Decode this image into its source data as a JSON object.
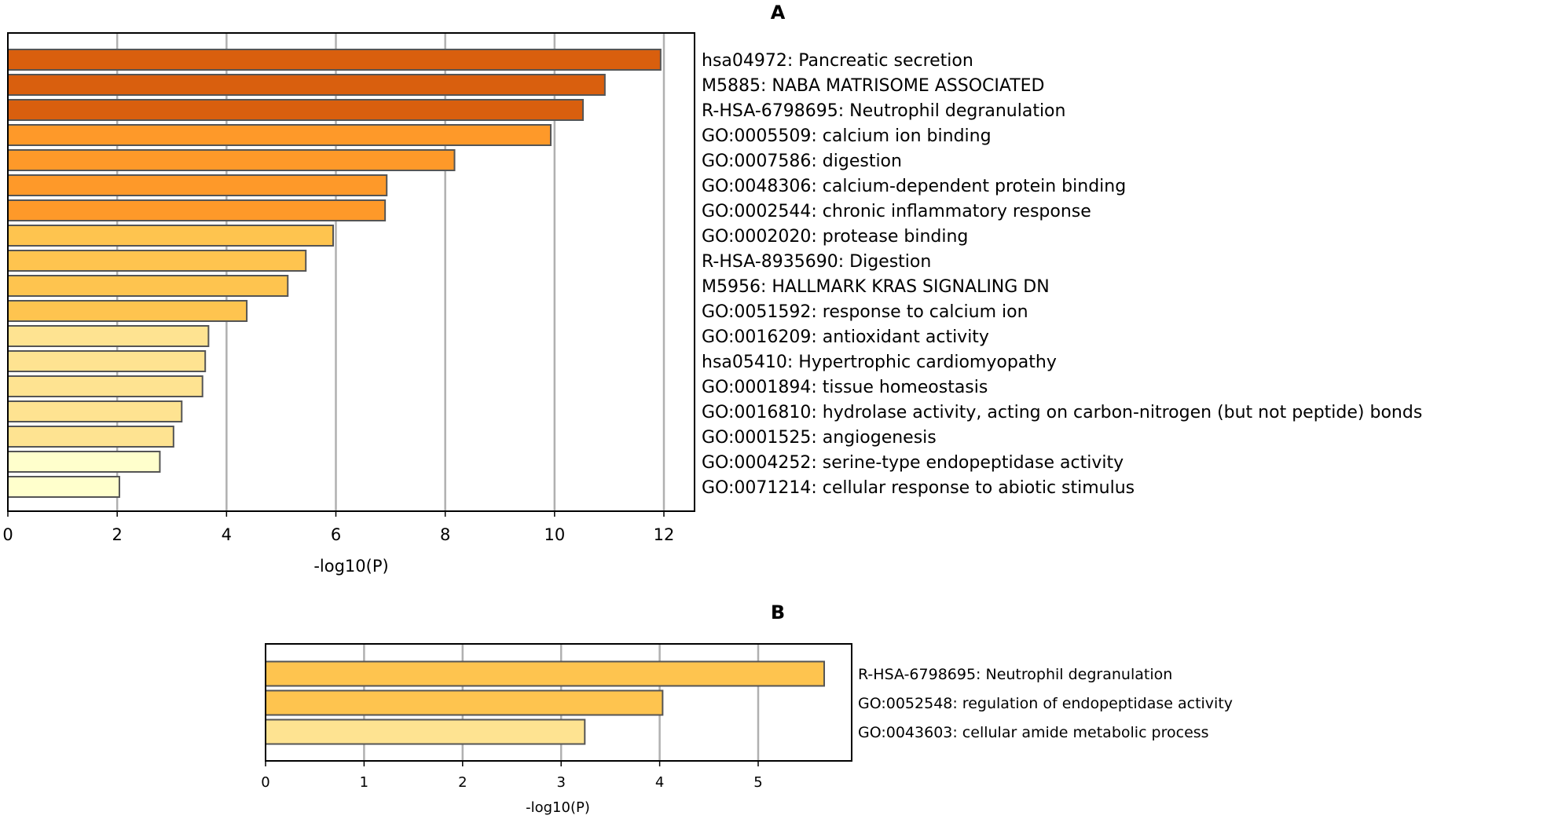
{
  "chart_data": [
    {
      "type": "bar",
      "orientation": "horizontal",
      "title": "A",
      "xlabel": "-log10(P)",
      "xlim": [
        0,
        12.6
      ],
      "xticks": [
        0,
        2,
        4,
        6,
        8,
        10,
        12
      ],
      "grid": "vertical",
      "categories": [
        "hsa04972: Pancreatic secretion",
        "M5885: NABA MATRISOME ASSOCIATED",
        "R-HSA-6798695: Neutrophil degranulation",
        "GO:0005509: calcium ion binding",
        "GO:0007586: digestion",
        "GO:0048306: calcium-dependent protein binding",
        "GO:0002544: chronic inflammatory response",
        "GO:0002020: protease binding",
        "R-HSA-8935690: Digestion",
        "M5956: HALLMARK KRAS SIGNALING DN",
        "GO:0051592: response to calcium ion",
        "GO:0016209: antioxidant activity",
        "hsa05410: Hypertrophic cardiomyopathy",
        "GO:0001894: tissue homeostasis",
        "GO:0016810: hydrolase activity, acting on carbon-nitrogen (but not peptide) bonds",
        "GO:0001525: angiogenesis",
        "GO:0004252: serine-type endopeptidase activity",
        "GO:0071214: cellular response to abiotic stimulus"
      ],
      "values": [
        11.94,
        10.92,
        10.52,
        9.93,
        8.17,
        6.93,
        6.9,
        5.95,
        5.45,
        5.12,
        4.37,
        3.67,
        3.61,
        3.56,
        3.18,
        3.03,
        2.78,
        2.04
      ],
      "colors": [
        "#D95F0E",
        "#D95F0E",
        "#D95F0E",
        "#FE9929",
        "#FE9929",
        "#FE9929",
        "#FE9929",
        "#FEC44F",
        "#FEC44F",
        "#FEC44F",
        "#FEC44F",
        "#FEE391",
        "#FEE391",
        "#FEE391",
        "#FEE391",
        "#FEE391",
        "#FFFFCC",
        "#FFFFCC"
      ]
    },
    {
      "type": "bar",
      "orientation": "horizontal",
      "title": "B",
      "xlabel": "-log10(P)",
      "xlim": [
        0,
        5.95
      ],
      "xticks": [
        0,
        1,
        2,
        3,
        4,
        5
      ],
      "grid": "vertical",
      "categories": [
        "R-HSA-6798695: Neutrophil degranulation",
        "GO:0052548: regulation of endopeptidase activity",
        "GO:0043603: cellular amide metabolic process"
      ],
      "values": [
        5.67,
        4.03,
        3.24
      ],
      "colors": [
        "#FEC44F",
        "#FEC44F",
        "#FEE391"
      ]
    }
  ]
}
